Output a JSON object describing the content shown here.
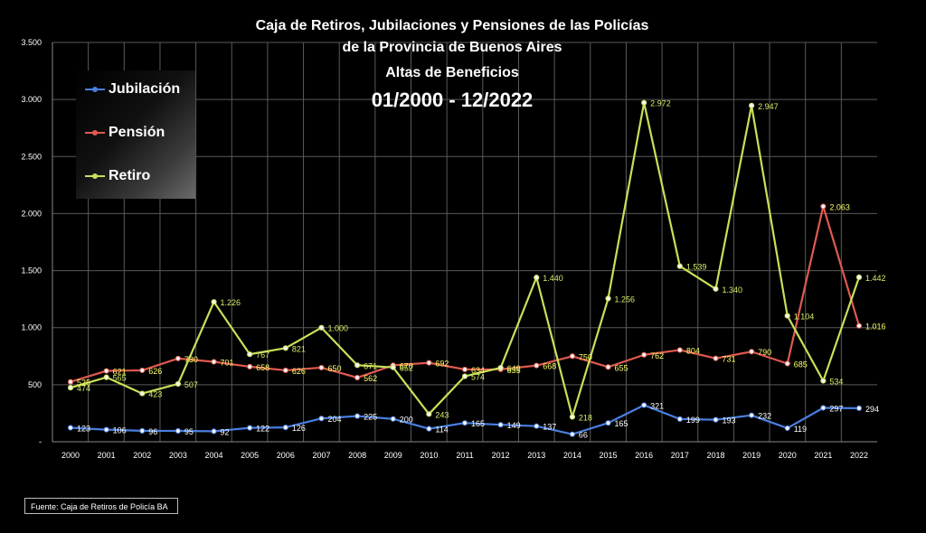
{
  "title_lines": [
    "Caja de Retiros, Jubilaciones y Pensiones de las Policías",
    "de la Provincia de Buenos Aires",
    "Altas de Beneficios",
    "01/2000 - 12/2022"
  ],
  "source": "Fuente: Caja de Retiros de Policía BA",
  "colors": {
    "background": "#000000",
    "grid": "#5a5a5a",
    "jubilacion": "#4a7fe0",
    "pension": "#e05a50",
    "retiro": "#c8e05a",
    "label_jubilacion": "#ffffff",
    "label_pension": "#ffff66",
    "label_retiro": "#d4f06a"
  },
  "chart_data": {
    "type": "line",
    "x": [
      "2000",
      "2001",
      "2002",
      "2003",
      "2004",
      "2005",
      "2006",
      "2007",
      "2008",
      "2009",
      "2010",
      "2011",
      "2012",
      "2013",
      "2014",
      "2015",
      "2016",
      "2017",
      "2018",
      "2019",
      "2020",
      "2021",
      "2022"
    ],
    "ylim": [
      0,
      3500
    ],
    "yticks": [
      "-",
      "500",
      "1.000",
      "1.500",
      "2.000",
      "2.500",
      "3.000",
      "3.500"
    ],
    "grid": true,
    "legend_position": "top-left",
    "series": [
      {
        "name": "Jubilación",
        "values": [
          123,
          106,
          96,
          95,
          92,
          122,
          126,
          204,
          225,
          200,
          114,
          165,
          149,
          137,
          66,
          165,
          321,
          199,
          193,
          232,
          119,
          297,
          294
        ],
        "labels": [
          "123",
          "106",
          "96",
          "95",
          "92",
          "122",
          "126",
          "204",
          "225",
          "200",
          "114",
          "165",
          "149",
          "137",
          "66",
          "165",
          "321",
          "199",
          "193",
          "232",
          "119",
          "297",
          "294"
        ]
      },
      {
        "name": "Pensión",
        "values": [
          525,
          621,
          626,
          730,
          701,
          658,
          626,
          650,
          562,
          670,
          692,
          634,
          635,
          668,
          750,
          655,
          762,
          804,
          731,
          790,
          685,
          2063,
          1016
        ],
        "labels": [
          "525",
          "621",
          "626",
          "730",
          "701",
          "658",
          "626",
          "650",
          "562",
          "670",
          "692",
          "634",
          "635",
          "668",
          "750",
          "655",
          "762",
          "804",
          "731",
          "790",
          "685",
          "2.063",
          "1.016"
        ]
      },
      {
        "name": "Retiro",
        "values": [
          474,
          565,
          423,
          507,
          1226,
          767,
          821,
          1000,
          671,
          652,
          243,
          574,
          649,
          1440,
          218,
          1256,
          2972,
          1539,
          1340,
          2947,
          1104,
          534,
          1442
        ],
        "labels": [
          "474",
          "565",
          "423",
          "507",
          "1.226",
          "767",
          "821",
          "1.000",
          "671",
          "652",
          "243",
          "574",
          "649",
          "1.440",
          "218",
          "1.256",
          "2.972",
          "1.539",
          "1.340",
          "2.947",
          "1.104",
          "534",
          "1.442"
        ]
      }
    ]
  }
}
